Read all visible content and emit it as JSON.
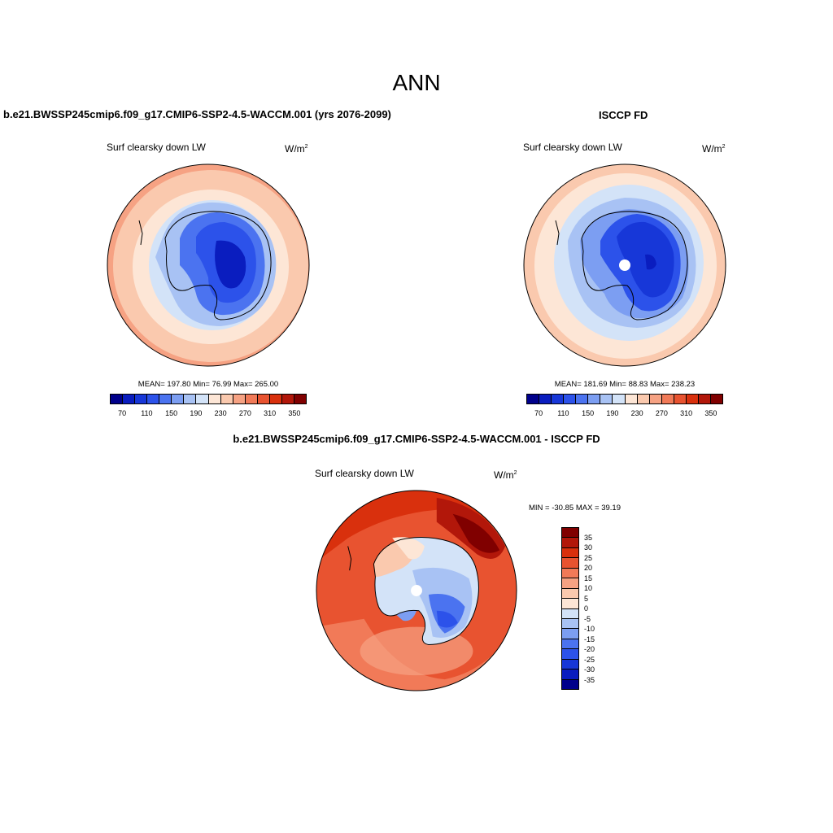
{
  "title": "ANN",
  "colors": {
    "abs_levels": [
      "#00008b",
      "#0a1dbf",
      "#1737d8",
      "#2c52ea",
      "#4b73f0",
      "#7c9ef2",
      "#a8c2f4",
      "#d3e3f8",
      "#fde6d6",
      "#fac9ae",
      "#f6a283",
      "#f17a58",
      "#e85330",
      "#d9300d",
      "#b2170a",
      "#800000"
    ],
    "diff_levels": [
      "#800000",
      "#b2170a",
      "#d9300d",
      "#e85330",
      "#f17a58",
      "#f6a283",
      "#fac9ae",
      "#fde6d6",
      "#d3e3f8",
      "#a8c2f4",
      "#7c9ef2",
      "#4b73f0",
      "#2c52ea",
      "#1737d8",
      "#0a1dbf",
      "#00008b"
    ]
  },
  "panels": {
    "model": {
      "title": "b.e21.BWSSP245cmip6.f09_g17.CMIP6-SSP2-4.5-WACCM.001 (yrs 2076-2099)",
      "variable": "Surf clearsky down LW",
      "units": "W/m",
      "units_sup": "2",
      "stats": "MEAN= 197.80  Min=  76.99  Max= 265.00",
      "colorbar_labels": [
        "70",
        "110",
        "150",
        "190",
        "230",
        "270",
        "310",
        "350"
      ]
    },
    "obs": {
      "title": "ISCCP FD",
      "variable": "Surf clearsky down LW",
      "units": "W/m",
      "units_sup": "2",
      "stats": "MEAN= 181.69  Min=  88.83  Max= 238.23",
      "colorbar_labels": [
        "70",
        "110",
        "150",
        "190",
        "230",
        "270",
        "310",
        "350"
      ]
    },
    "diff": {
      "title": "b.e21.BWSSP245cmip6.f09_g17.CMIP6-SSP2-4.5-WACCM.001 - ISCCP FD",
      "variable": "Surf clearsky down LW",
      "units": "W/m",
      "units_sup": "2",
      "stats": "MIN = -30.85 MAX =  39.19",
      "colorbar_labels": [
        "35",
        "30",
        "25",
        "20",
        "15",
        "10",
        "5",
        "0",
        "-5",
        "-10",
        "-15",
        "-20",
        "-25",
        "-30",
        "-35"
      ]
    }
  }
}
